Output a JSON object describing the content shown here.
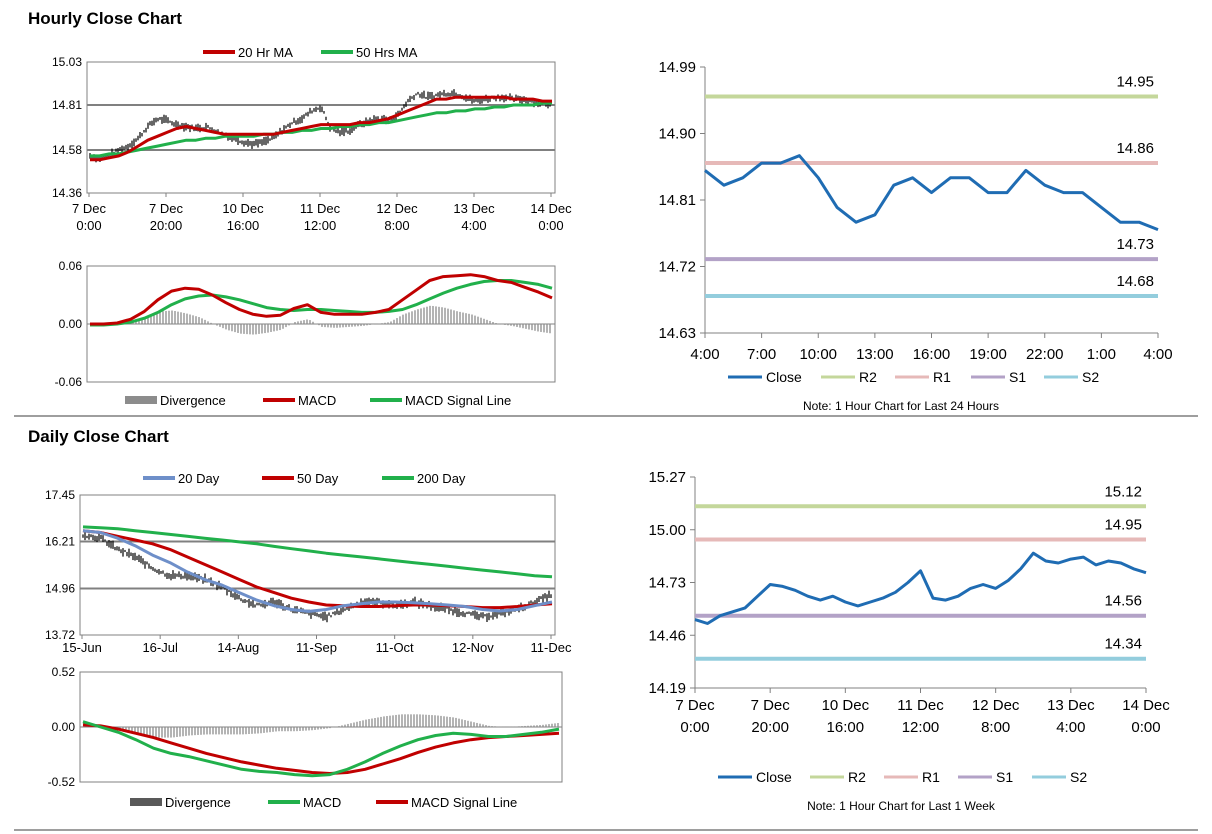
{
  "sections": {
    "hourly_title": "Hourly Close Chart",
    "daily_title": "Daily Close Chart"
  },
  "colors": {
    "red": "#c00000",
    "green": "#21b04b",
    "blue": "#1f6cb3",
    "steel": "#6e8fc9",
    "r2": "#c4d79b",
    "r1": "#e6b9b8",
    "s1": "#b3a2c7",
    "s2": "#93cddd",
    "grey": "#8c8c8c",
    "axis": "#808080"
  },
  "chart_data": [
    {
      "id": "hourly_price",
      "type": "line",
      "subtype": "ohlc-with-moving-averages",
      "legend": [
        "20 Hr MA",
        "50 Hrs MA"
      ],
      "ylim": [
        14.36,
        15.03
      ],
      "yticks": [
        "15.03",
        "14.81",
        "14.58",
        "14.36"
      ],
      "xticks": [
        [
          "7 Dec",
          "0:00"
        ],
        [
          "7 Dec",
          "20:00"
        ],
        [
          "10 Dec",
          "16:00"
        ],
        [
          "11 Dec",
          "12:00"
        ],
        [
          "12 Dec",
          "8:00"
        ],
        [
          "13 Dec",
          "4:00"
        ],
        [
          "14 Dec",
          "0:00"
        ]
      ],
      "close": [
        14.55,
        14.54,
        14.55,
        14.58,
        14.6,
        14.64,
        14.7,
        14.74,
        14.73,
        14.71,
        14.7,
        14.69,
        14.7,
        14.68,
        14.66,
        14.64,
        14.62,
        14.61,
        14.62,
        14.64,
        14.68,
        14.72,
        14.74,
        14.78,
        14.8,
        14.69,
        14.67,
        14.68,
        14.71,
        14.73,
        14.74,
        14.73,
        14.76,
        14.83,
        14.87,
        14.85,
        14.86,
        14.87,
        14.87,
        14.85,
        14.83,
        14.84,
        14.85,
        14.85,
        14.84,
        14.84,
        14.83,
        14.82,
        14.8
      ],
      "ma20": [
        14.53,
        14.53,
        14.54,
        14.55,
        14.57,
        14.6,
        14.63,
        14.65,
        14.67,
        14.69,
        14.7,
        14.69,
        14.68,
        14.67,
        14.66,
        14.66,
        14.66,
        14.66,
        14.66,
        14.66,
        14.67,
        14.68,
        14.69,
        14.7,
        14.71,
        14.71,
        14.71,
        14.71,
        14.72,
        14.72,
        14.73,
        14.74,
        14.76,
        14.78,
        14.8,
        14.82,
        14.84,
        14.84,
        14.85,
        14.85,
        14.85,
        14.85,
        14.85,
        14.85,
        14.84,
        14.84,
        14.84,
        14.83,
        14.83
      ],
      "ma50": [
        14.55,
        14.55,
        14.56,
        14.56,
        14.57,
        14.58,
        14.59,
        14.6,
        14.61,
        14.62,
        14.63,
        14.63,
        14.64,
        14.64,
        14.65,
        14.65,
        14.65,
        14.65,
        14.66,
        14.66,
        14.67,
        14.67,
        14.68,
        14.68,
        14.69,
        14.69,
        14.7,
        14.7,
        14.71,
        14.71,
        14.72,
        14.72,
        14.73,
        14.74,
        14.75,
        14.76,
        14.77,
        14.77,
        14.78,
        14.78,
        14.79,
        14.79,
        14.8,
        14.8,
        14.81,
        14.81,
        14.81,
        14.82,
        14.82
      ]
    },
    {
      "id": "hourly_macd",
      "type": "line",
      "subtype": "macd",
      "legend": [
        "Divergence",
        "MACD",
        "MACD Signal Line"
      ],
      "ylim": [
        -0.06,
        0.06
      ],
      "yticks": [
        "0.06",
        "0.00",
        "-0.06"
      ],
      "macd": [
        0.0,
        0.0,
        0.001,
        0.005,
        0.013,
        0.025,
        0.034,
        0.037,
        0.036,
        0.03,
        0.022,
        0.015,
        0.01,
        0.008,
        0.009,
        0.016,
        0.02,
        0.012,
        0.01,
        0.01,
        0.01,
        0.012,
        0.015,
        0.025,
        0.035,
        0.045,
        0.049,
        0.05,
        0.051,
        0.049,
        0.045,
        0.043,
        0.038,
        0.033,
        0.027
      ],
      "signal": [
        -0.001,
        -0.001,
        0.0,
        0.002,
        0.006,
        0.012,
        0.02,
        0.026,
        0.029,
        0.03,
        0.028,
        0.025,
        0.021,
        0.017,
        0.015,
        0.014,
        0.015,
        0.015,
        0.014,
        0.013,
        0.012,
        0.012,
        0.013,
        0.015,
        0.02,
        0.026,
        0.032,
        0.037,
        0.041,
        0.044,
        0.045,
        0.045,
        0.043,
        0.041,
        0.037
      ],
      "divergence": [
        0.001,
        0.001,
        0.001,
        0.003,
        0.007,
        0.013,
        0.014,
        0.011,
        0.007,
        0.0,
        -0.006,
        -0.01,
        -0.011,
        -0.009,
        -0.006,
        0.002,
        0.005,
        -0.003,
        -0.004,
        -0.003,
        -0.002,
        0.0,
        0.002,
        0.01,
        0.015,
        0.019,
        0.017,
        0.013,
        0.01,
        0.005,
        0.0,
        -0.002,
        -0.005,
        -0.008,
        -0.01
      ]
    },
    {
      "id": "hourly_24h",
      "type": "line",
      "title": "",
      "legend": [
        "Close",
        "R2",
        "R1",
        "S1",
        "S2"
      ],
      "note": "Note: 1 Hour Chart for Last 24 Hours",
      "ylim": [
        14.63,
        14.99
      ],
      "yticks": [
        "14.99",
        "14.90",
        "14.81",
        "14.72",
        "14.63"
      ],
      "xticks": [
        "4:00",
        "7:00",
        "10:00",
        "13:00",
        "16:00",
        "19:00",
        "22:00",
        "1:00",
        "4:00"
      ],
      "close": [
        14.85,
        14.83,
        14.84,
        14.86,
        14.86,
        14.87,
        14.84,
        14.8,
        14.78,
        14.79,
        14.83,
        14.84,
        14.82,
        14.84,
        14.84,
        14.82,
        14.82,
        14.85,
        14.83,
        14.82,
        14.82,
        14.8,
        14.78,
        14.78,
        14.77
      ],
      "levels": {
        "R2": 14.95,
        "R1": 14.86,
        "S1": 14.73,
        "S2": 14.68
      },
      "level_labels": {
        "R2": "14.95",
        "R1": "14.86",
        "S1": "14.73",
        "S2": "14.68"
      }
    },
    {
      "id": "daily_price",
      "type": "line",
      "subtype": "ohlc-with-moving-averages",
      "legend": [
        "20 Day",
        "50 Day",
        "200 Day"
      ],
      "ylim": [
        13.72,
        17.45
      ],
      "yticks": [
        "17.45",
        "16.21",
        "14.96",
        "13.72"
      ],
      "xticks": [
        "15-Jun",
        "16-Jul",
        "14-Aug",
        "11-Sep",
        "11-Oct",
        "12-Nov",
        "11-Dec"
      ],
      "close": [
        16.4,
        16.3,
        16.0,
        15.8,
        15.5,
        15.3,
        15.3,
        15.2,
        15.0,
        14.7,
        14.5,
        14.6,
        14.4,
        14.3,
        14.2,
        14.4,
        14.6,
        14.6,
        14.5,
        14.6,
        14.5,
        14.4,
        14.3,
        14.2,
        14.3,
        14.4,
        14.6,
        14.8
      ],
      "ma20": [
        16.5,
        16.45,
        16.3,
        16.1,
        15.85,
        15.65,
        15.4,
        15.2,
        15.05,
        14.85,
        14.65,
        14.5,
        14.4,
        14.35,
        14.4,
        14.5,
        14.55,
        14.6,
        14.6,
        14.58,
        14.55,
        14.52,
        14.48,
        14.4,
        14.36,
        14.4,
        14.5,
        14.6
      ],
      "ma50": [
        16.5,
        16.45,
        16.35,
        16.25,
        16.15,
        16.0,
        15.8,
        15.6,
        15.4,
        15.2,
        15.0,
        14.85,
        14.7,
        14.6,
        14.52,
        14.5,
        14.48,
        14.48,
        14.5,
        14.52,
        14.52,
        14.5,
        14.48,
        14.45,
        14.45,
        14.48,
        14.52,
        14.55
      ],
      "ma200": [
        16.6,
        16.58,
        16.55,
        16.5,
        16.45,
        16.4,
        16.35,
        16.3,
        16.25,
        16.2,
        16.15,
        16.08,
        16.02,
        15.96,
        15.9,
        15.85,
        15.8,
        15.75,
        15.7,
        15.65,
        15.6,
        15.55,
        15.5,
        15.45,
        15.4,
        15.35,
        15.3,
        15.27
      ]
    },
    {
      "id": "daily_macd",
      "type": "line",
      "subtype": "macd",
      "legend": [
        "Divergence",
        "MACD",
        "MACD Signal Line"
      ],
      "ylim": [
        -0.52,
        0.52
      ],
      "yticks": [
        "0.52",
        "0.00",
        "-0.52"
      ],
      "macd": [
        0.05,
        0.0,
        -0.05,
        -0.12,
        -0.2,
        -0.25,
        -0.28,
        -0.32,
        -0.36,
        -0.4,
        -0.42,
        -0.43,
        -0.45,
        -0.46,
        -0.45,
        -0.4,
        -0.33,
        -0.25,
        -0.18,
        -0.12,
        -0.08,
        -0.06,
        -0.07,
        -0.09,
        -0.09,
        -0.07,
        -0.05,
        -0.02
      ],
      "signal": [
        0.02,
        0.01,
        -0.02,
        -0.06,
        -0.1,
        -0.15,
        -0.2,
        -0.25,
        -0.29,
        -0.33,
        -0.36,
        -0.39,
        -0.41,
        -0.43,
        -0.44,
        -0.43,
        -0.4,
        -0.35,
        -0.3,
        -0.24,
        -0.19,
        -0.15,
        -0.12,
        -0.1,
        -0.09,
        -0.08,
        -0.07,
        -0.06
      ],
      "divergence": [
        0.03,
        -0.01,
        -0.03,
        -0.06,
        -0.1,
        -0.1,
        -0.08,
        -0.07,
        -0.07,
        -0.07,
        -0.06,
        -0.04,
        -0.04,
        -0.03,
        -0.01,
        0.03,
        0.07,
        0.1,
        0.12,
        0.12,
        0.11,
        0.09,
        0.05,
        0.01,
        0.0,
        0.01,
        0.02,
        0.04
      ]
    },
    {
      "id": "weekly_1h",
      "type": "line",
      "legend": [
        "Close",
        "R2",
        "R1",
        "S1",
        "S2"
      ],
      "note": "Note: 1 Hour Chart for Last 1 Week",
      "ylim": [
        14.19,
        15.27
      ],
      "yticks": [
        "15.27",
        "15.00",
        "14.73",
        "14.46",
        "14.19"
      ],
      "xticks": [
        [
          "7 Dec",
          "0:00"
        ],
        [
          "7 Dec",
          "20:00"
        ],
        [
          "10 Dec",
          "16:00"
        ],
        [
          "11 Dec",
          "12:00"
        ],
        [
          "12 Dec",
          "8:00"
        ],
        [
          "13 Dec",
          "4:00"
        ],
        [
          "14 Dec",
          "0:00"
        ]
      ],
      "close": [
        14.54,
        14.52,
        14.56,
        14.58,
        14.6,
        14.66,
        14.72,
        14.71,
        14.69,
        14.66,
        14.64,
        14.66,
        14.63,
        14.61,
        14.63,
        14.65,
        14.68,
        14.73,
        14.79,
        14.65,
        14.64,
        14.66,
        14.7,
        14.72,
        14.7,
        14.74,
        14.8,
        14.88,
        14.84,
        14.83,
        14.85,
        14.86,
        14.82,
        14.84,
        14.83,
        14.8,
        14.78
      ],
      "levels": {
        "R2": 15.12,
        "R1": 14.95,
        "S1": 14.56,
        "S2": 14.34
      },
      "level_labels": {
        "R2": "15.12",
        "R1": "14.95",
        "S1": "14.56",
        "S2": "14.34"
      }
    }
  ]
}
